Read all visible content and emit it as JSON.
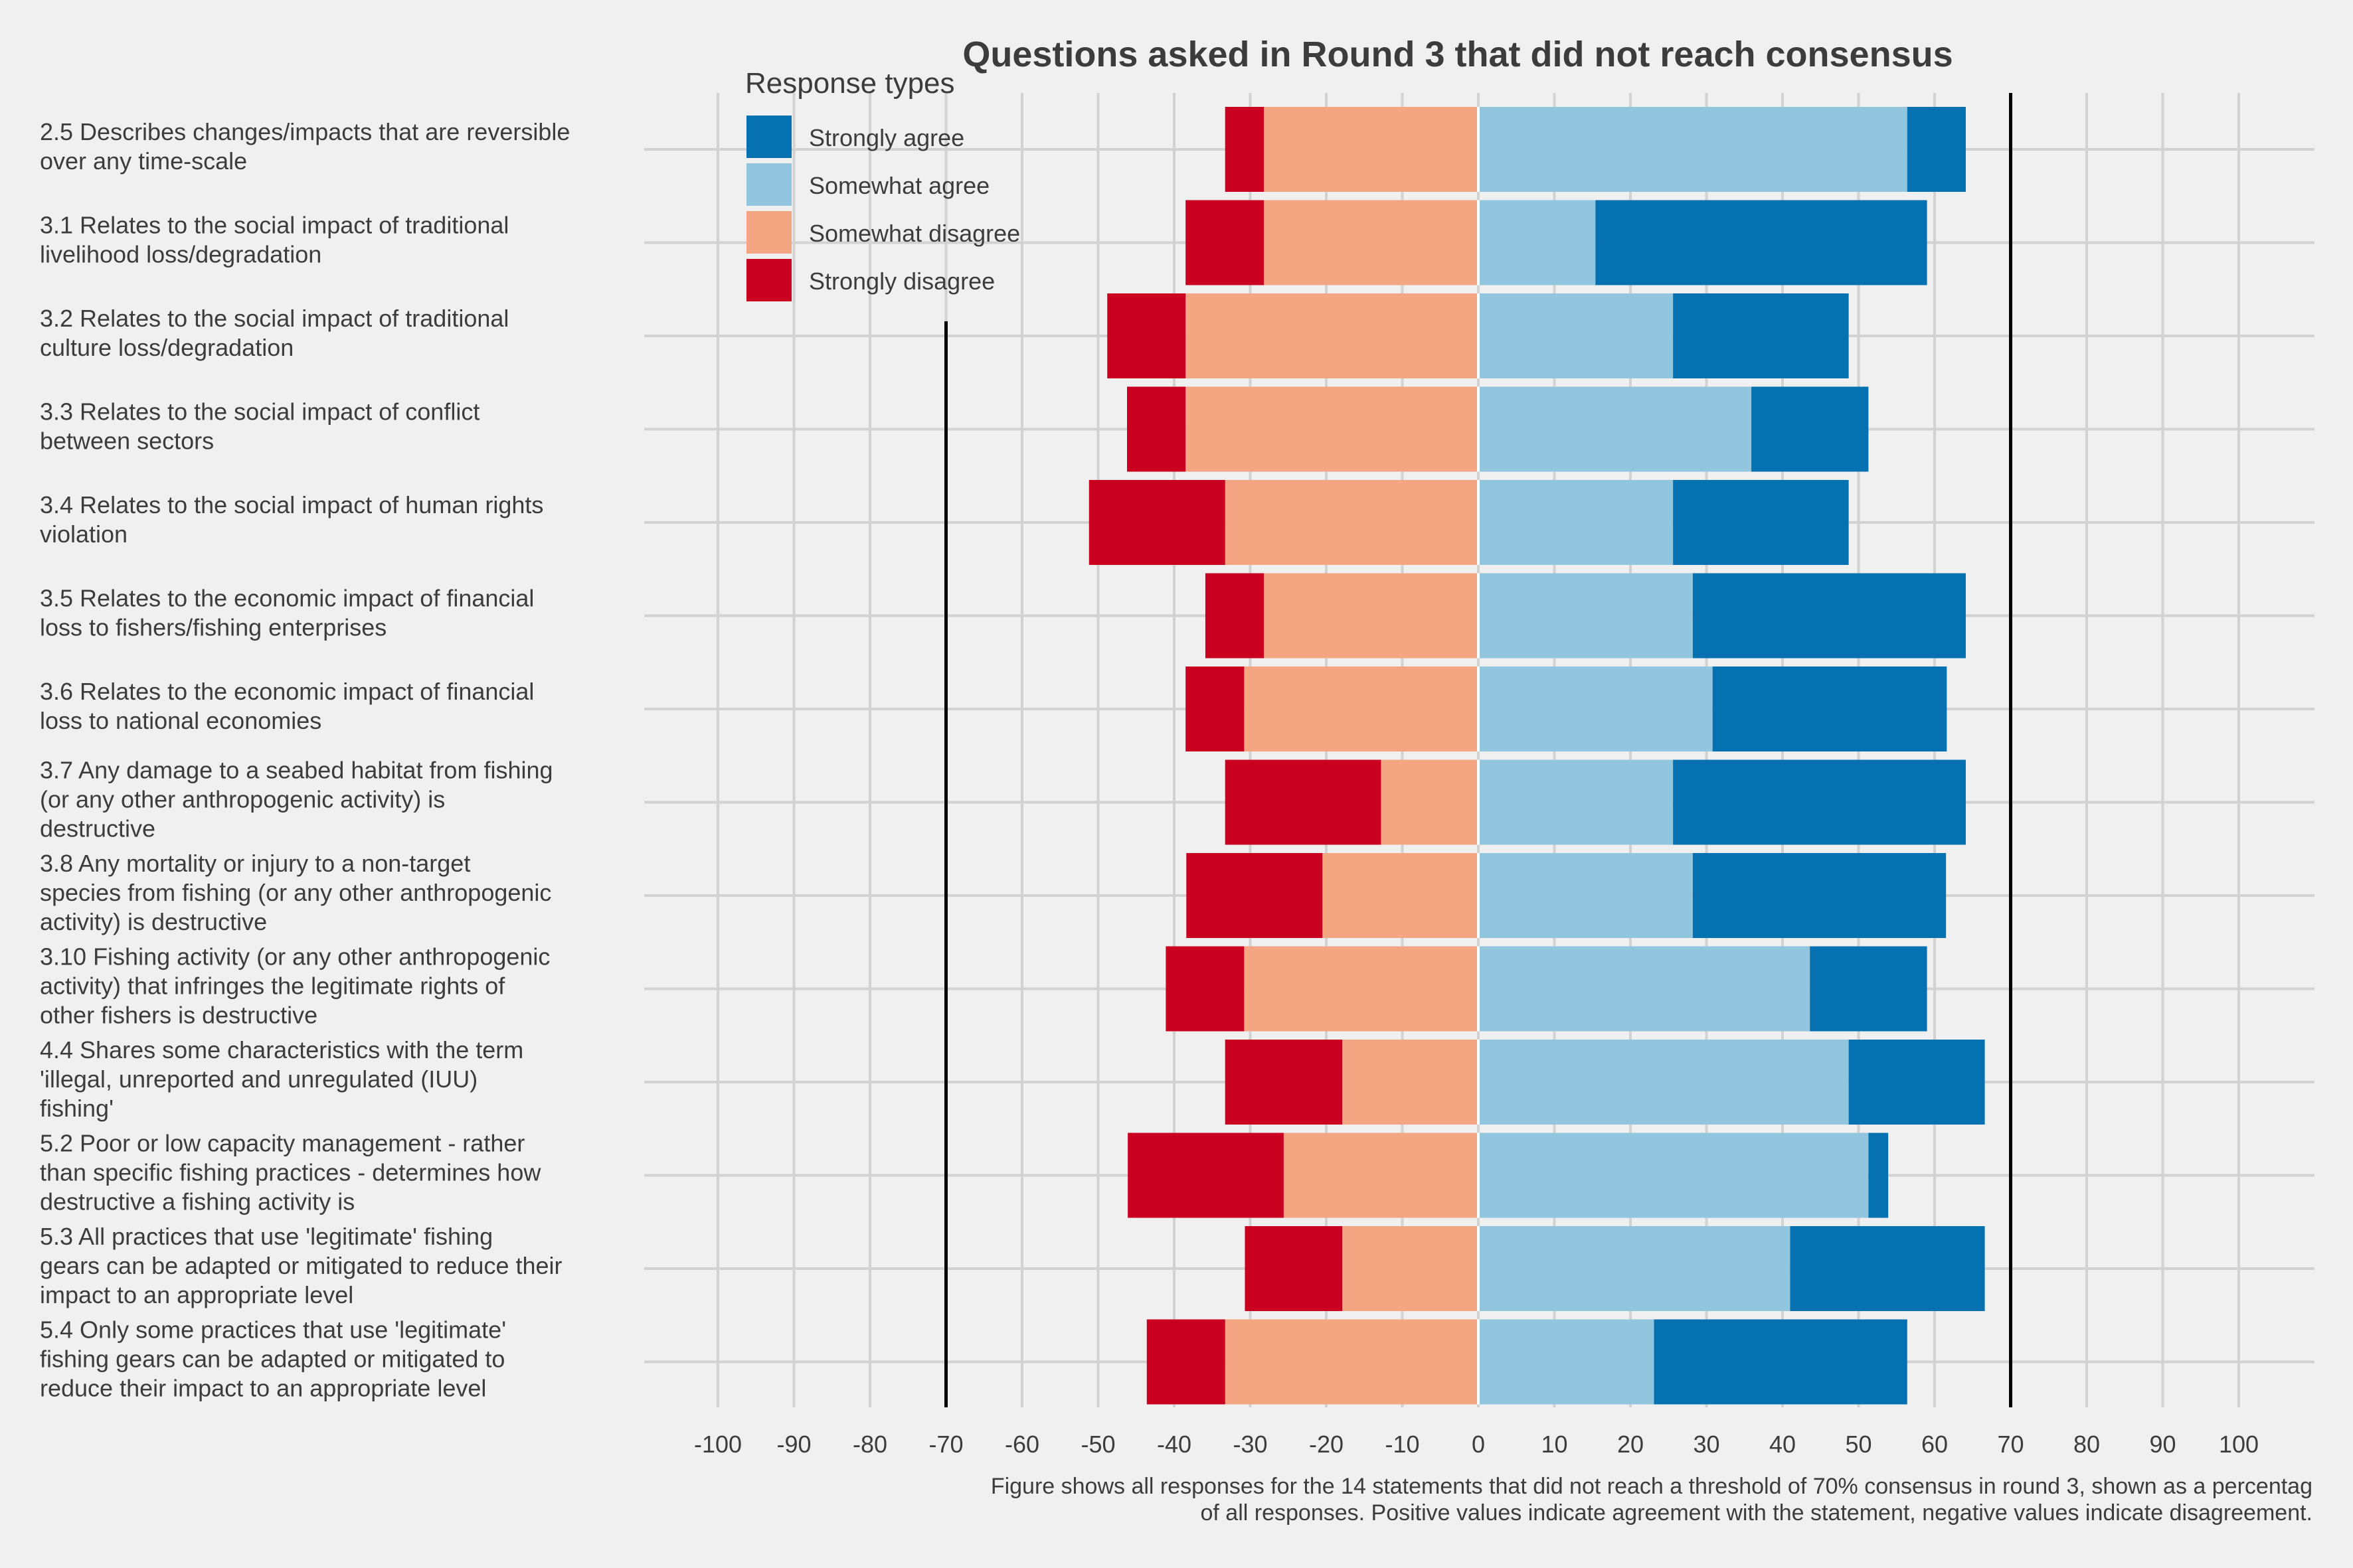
{
  "chart_data": {
    "type": "bar",
    "orientation": "horizontal-diverging",
    "title": "Questions asked in Round 3 that did not reach consensus",
    "caption": [
      "Figure shows all responses for the 14 statements that did not reach a threshold of 70% consensus in round 3, shown as a percentag",
      "of all responses. Positive values indicate agreement with the statement, negative values indicate disagreement."
    ],
    "legend_title": "Response types",
    "legend_position": "top-left",
    "grid": true,
    "xlim": [
      -100,
      100
    ],
    "x_ticks": [
      -100,
      -90,
      -80,
      -70,
      -60,
      -50,
      -40,
      -30,
      -20,
      -10,
      0,
      10,
      20,
      30,
      40,
      50,
      60,
      70,
      80,
      90,
      100
    ],
    "reference_lines": [
      -70,
      70
    ],
    "categories": [
      [
        "2.5 Describes changes/impacts that are reversible",
        "over any time-scale"
      ],
      [
        "3.1 Relates to the social impact of traditional",
        "livelihood loss/degradation"
      ],
      [
        "3.2 Relates to the social impact of traditional",
        "culture loss/degradation"
      ],
      [
        "3.3 Relates to the social impact of conflict",
        "between sectors"
      ],
      [
        "3.4 Relates to the social impact of human rights",
        "violation"
      ],
      [
        "3.5 Relates to the economic impact of financial",
        "loss to fishers/fishing enterprises"
      ],
      [
        "3.6 Relates to the economic impact of financial",
        "loss to national economies"
      ],
      [
        "3.7 Any damage to a seabed habitat from fishing",
        "(or any other anthropogenic activity) is",
        "destructive"
      ],
      [
        "3.8 Any mortality or injury to a non-target",
        "species from fishing (or any other anthropogenic",
        "activity) is destructive"
      ],
      [
        "3.10 Fishing activity (or any other anthropogenic",
        "activity) that infringes the legitimate rights of",
        "other fishers is destructive"
      ],
      [
        "4.4 Shares some characteristics with the term",
        "'illegal, unreported and unregulated (IUU)",
        "fishing'"
      ],
      [
        "5.2 Poor or low capacity management - rather",
        "than specific fishing practices - determines how",
        "destructive a fishing activity is"
      ],
      [
        "5.3 All practices that use 'legitimate' fishing",
        "gears can be adapted or mitigated to reduce their",
        "impact to an appropriate level"
      ],
      [
        "5.4 Only some practices that use 'legitimate'",
        "fishing gears can be adapted or mitigated to",
        "reduce their impact to an appropriate level"
      ]
    ],
    "series": [
      {
        "name": "Strongly agree",
        "color": "#0571b0",
        "values": [
          7.7,
          43.6,
          23.1,
          15.4,
          23.1,
          35.9,
          30.8,
          38.5,
          33.3,
          15.4,
          17.9,
          2.6,
          25.6,
          33.3
        ]
      },
      {
        "name": "Somewhat agree",
        "color": "#92c5de",
        "values": [
          56.4,
          15.4,
          25.6,
          35.9,
          25.6,
          28.2,
          30.8,
          25.6,
          28.2,
          43.6,
          48.7,
          51.3,
          41.0,
          23.1
        ]
      },
      {
        "name": "Somewhat disagree",
        "color": "#f4a582",
        "values": [
          -28.2,
          -28.2,
          -38.5,
          -38.5,
          -33.3,
          -28.2,
          -30.8,
          -12.8,
          -20.5,
          -30.8,
          -17.9,
          -25.6,
          -17.9,
          -33.3
        ]
      },
      {
        "name": "Strongly disagree",
        "color": "#ca0020",
        "values": [
          -5.1,
          -10.3,
          -10.3,
          -7.7,
          -17.9,
          -7.7,
          -7.7,
          -20.5,
          -17.9,
          -10.3,
          -15.4,
          -20.5,
          -12.8,
          -10.3
        ]
      }
    ]
  }
}
